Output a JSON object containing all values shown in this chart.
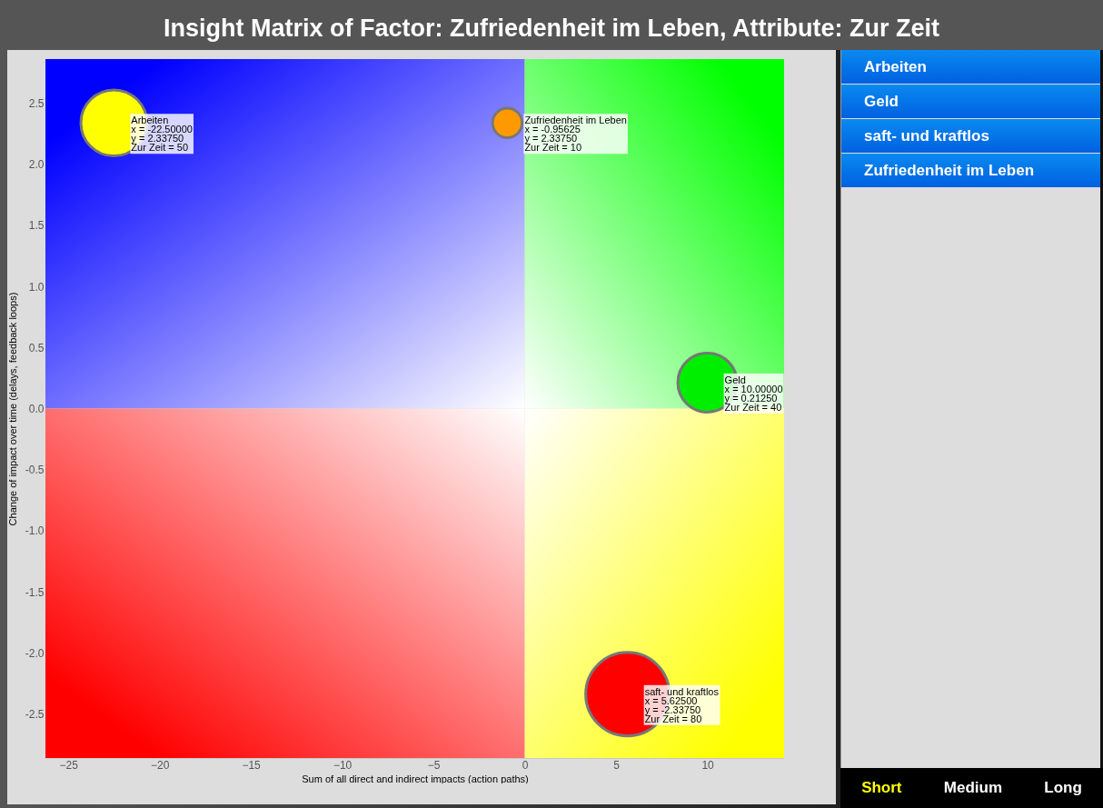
{
  "chart_data": {
    "type": "bubble",
    "title": "Insight Matrix of Factor: Zufriedenheit im Leben, Attribute: Zur Zeit",
    "xlabel": "Sum of all direct and indirect impacts (action paths)",
    "ylabel": "Change of impact over time (delays, feedback loops)",
    "series": [
      {
        "name": "Arbeiten",
        "color": "#ffff00",
        "x": [
          -22.5
        ],
        "values": [
          2.3375
        ],
        "sizes": [
          0.625
        ]
      },
      {
        "name": "Geld",
        "color": "#00ee00",
        "x": [
          10.0
        ],
        "values": [
          0.2125
        ],
        "sizes": [
          0.5
        ]
      },
      {
        "name": "saft- und kraftlos",
        "color": "#ff0000",
        "x": [
          5.625
        ],
        "values": [
          -2.3375
        ],
        "sizes": [
          1
        ]
      },
      {
        "name": "Zufriedenheit im Leben",
        "color": "#ff9900",
        "x": [
          -0.95625
        ],
        "values": [
          2.3375
        ],
        "sizes": [
          0.125
        ]
      }
    ],
    "xlim": [
      -26.25,
      14.2
    ],
    "ylim": [
      -2.86,
      2.86
    ],
    "xticks": [
      -25,
      -20,
      -15,
      -10,
      -5,
      0,
      5,
      10
    ],
    "yticks": [
      {
        "value": -2.5,
        "label": "-2.5"
      },
      {
        "value": -2,
        "label": "-2.0"
      },
      {
        "value": -1.5,
        "label": "-1.5"
      },
      {
        "value": -1,
        "label": "-1.0"
      },
      {
        "value": -0.5,
        "label": "-0.5"
      },
      {
        "value": 0,
        "label": "0.0"
      },
      {
        "value": 0.5,
        "label": "0.5"
      },
      {
        "value": 1,
        "label": "1.0"
      },
      {
        "value": 1.5,
        "label": "1.5"
      },
      {
        "value": 2,
        "label": "2.0"
      },
      {
        "value": 2.5,
        "label": "2.5"
      }
    ],
    "annotations": [
      {
        "text": "Arbeiten\nx = -22.50000\ny = 2.33750\nZur Zeit = 50",
        "x": -22.5,
        "y": 2.3375
      },
      {
        "text": "Geld\nx = 10.00000\ny = 0.21250\nZur Zeit = 40",
        "x": 10.0,
        "y": 0.2125
      },
      {
        "text": "saft- und kraftlos\nx = 5.62500\ny = -2.33750\nZur Zeit = 80",
        "x": 5.625,
        "y": -2.3375
      },
      {
        "text": "Zufriedenheit im Leben\nx = -0.95625\ny = 2.33750\nZur Zeit = 10",
        "x": -0.95625,
        "y": 2.3375
      },
      "Short",
      "Medium",
      "Long"
    ],
    "legend": false
  }
}
